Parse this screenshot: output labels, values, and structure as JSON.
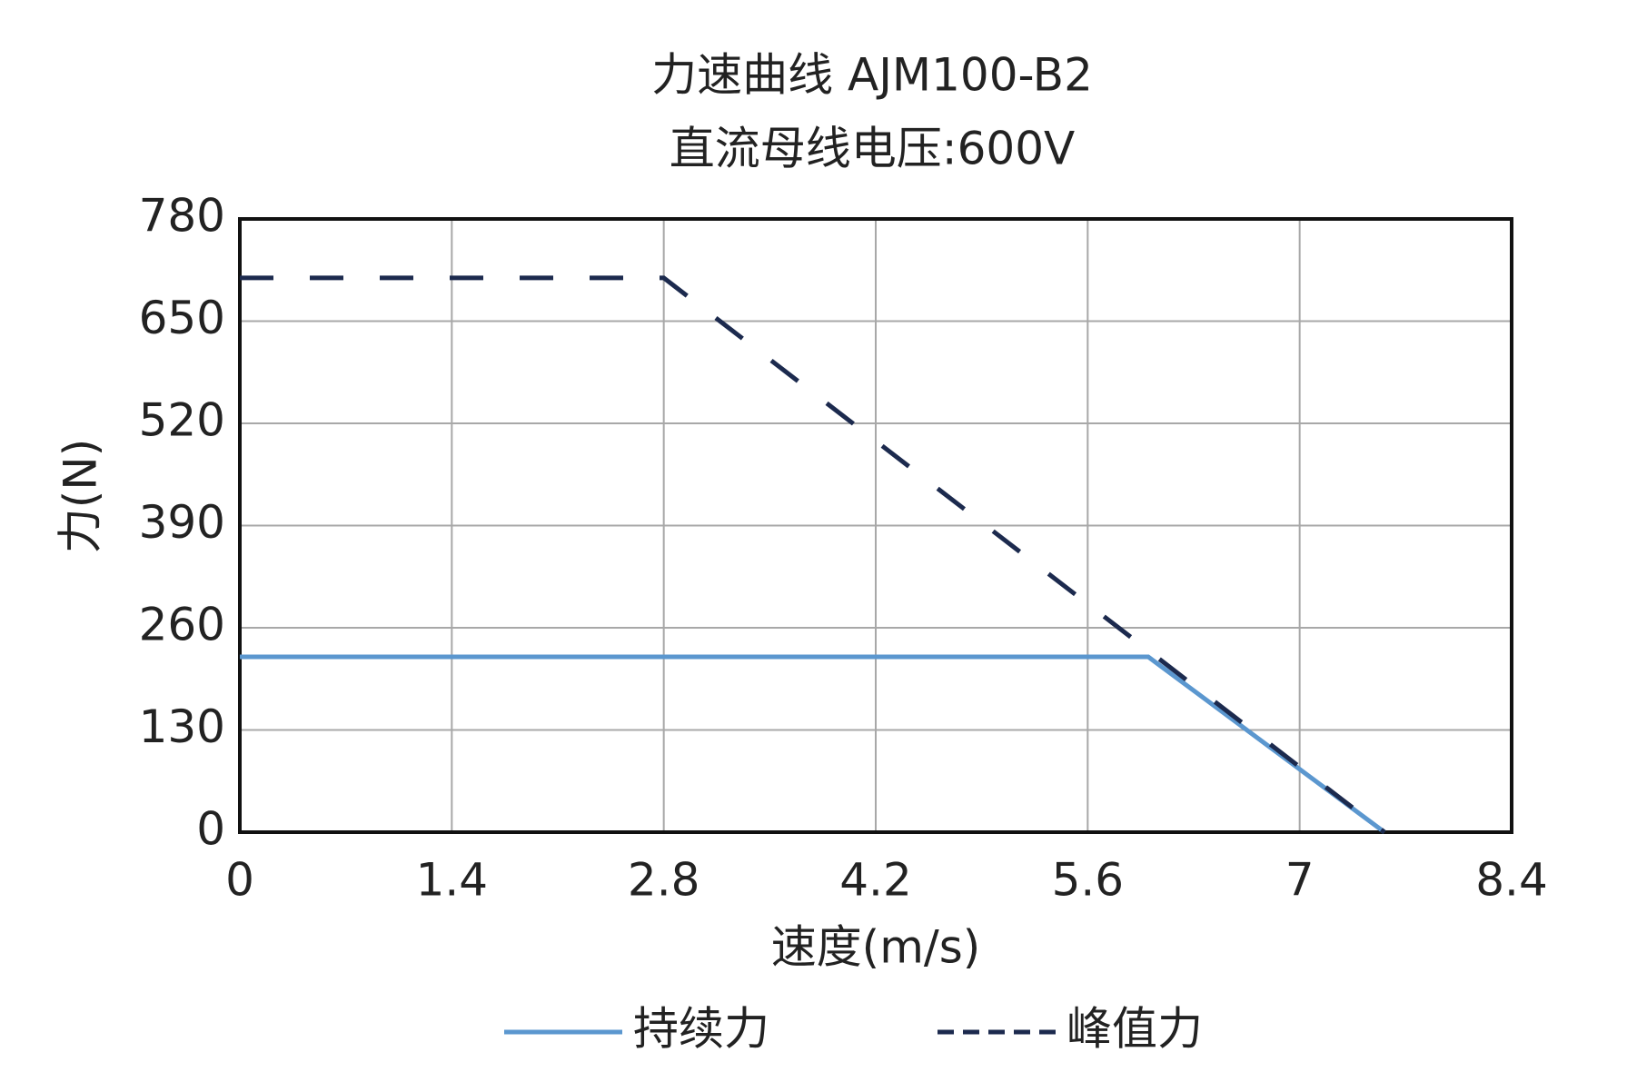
{
  "chart_data": {
    "type": "line",
    "title": "力速曲线 AJM100-B2",
    "subtitle": "直流母线电压:600V",
    "x_label": "速度(m/s)",
    "y_label": "力(N)",
    "xlim": [
      0,
      8.4
    ],
    "xticks": [
      0,
      1.4,
      2.8,
      4.2,
      5.6,
      7,
      8.4
    ],
    "ylim": [
      0,
      780
    ],
    "yticks": [
      0,
      130,
      260,
      390,
      520,
      650,
      780
    ],
    "grid": true,
    "series": [
      {
        "name": "持续力",
        "color": "#5b97cf",
        "dashed": false,
        "x": [
          0,
          6.0,
          7.56
        ],
        "values": [
          223,
          223,
          0
        ]
      },
      {
        "name": "峰值力",
        "color": "#1c2a4e",
        "dashed": true,
        "x": [
          0,
          2.8,
          7.56
        ],
        "values": [
          705,
          705,
          0
        ]
      }
    ]
  }
}
